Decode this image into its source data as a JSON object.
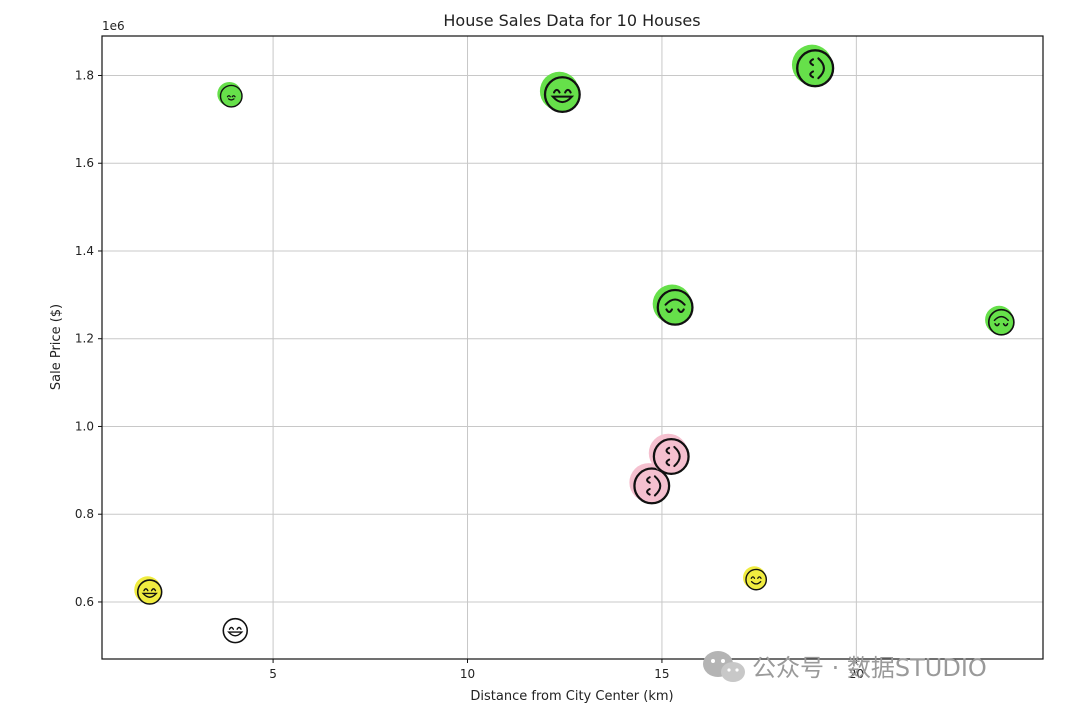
{
  "chart_data": {
    "type": "scatter",
    "title": "House Sales Data for 10 Houses",
    "xlabel": "Distance from City Center (km)",
    "ylabel": "Sale Price ($)",
    "y_offset_label": "1e6",
    "xlim": [
      0.6,
      24.8
    ],
    "ylim": [
      0.47,
      1.89
    ],
    "xticks": [
      5,
      10,
      15,
      20
    ],
    "xtick_labels": [
      "5",
      "10",
      "15",
      "20"
    ],
    "yticks": [
      0.6,
      0.8,
      1.0,
      1.2,
      1.4,
      1.6,
      1.8
    ],
    "ytick_labels": [
      "0.6",
      "0.8",
      "1.0",
      "1.2",
      "1.4",
      "1.6",
      "1.8"
    ],
    "grid": true,
    "colors": {
      "green": "#66e04a",
      "yellow": "#f0ec40",
      "pink": "#f5c0cf",
      "white": "#ffffff",
      "outline": "#111111",
      "grid": "#c8c8c8"
    },
    "points": [
      {
        "x": 1.8,
        "y": 0.625,
        "color": "yellow",
        "face": "grin",
        "size": 1.0,
        "filled": true
      },
      {
        "x": 3.9,
        "y": 1.755,
        "color": "green",
        "face": "tiny",
        "size": 0.9,
        "filled": true
      },
      {
        "x": 4.0,
        "y": 0.537,
        "color": "white",
        "face": "grin",
        "size": 1.0,
        "filled": false
      },
      {
        "x": 12.4,
        "y": 1.76,
        "color": "green",
        "face": "grin",
        "size": 1.45,
        "filled": true
      },
      {
        "x": 14.7,
        "y": 0.868,
        "color": "pink",
        "face": "wink-side",
        "size": 1.45,
        "filled": true
      },
      {
        "x": 15.2,
        "y": 0.935,
        "color": "pink",
        "face": "wink-side",
        "size": 1.45,
        "filled": true
      },
      {
        "x": 15.3,
        "y": 1.275,
        "color": "green",
        "face": "wink-down",
        "size": 1.45,
        "filled": true
      },
      {
        "x": 17.4,
        "y": 0.653,
        "color": "yellow",
        "face": "smile",
        "size": 0.85,
        "filled": true
      },
      {
        "x": 18.9,
        "y": 1.82,
        "color": "green",
        "face": "wink-side",
        "size": 1.5,
        "filled": true
      },
      {
        "x": 23.7,
        "y": 1.24,
        "color": "green",
        "face": "wink-down",
        "size": 1.05,
        "filled": true
      }
    ]
  },
  "watermark": {
    "icon": "wechat-icon",
    "text": "公众号 · 数据STUDIO"
  }
}
